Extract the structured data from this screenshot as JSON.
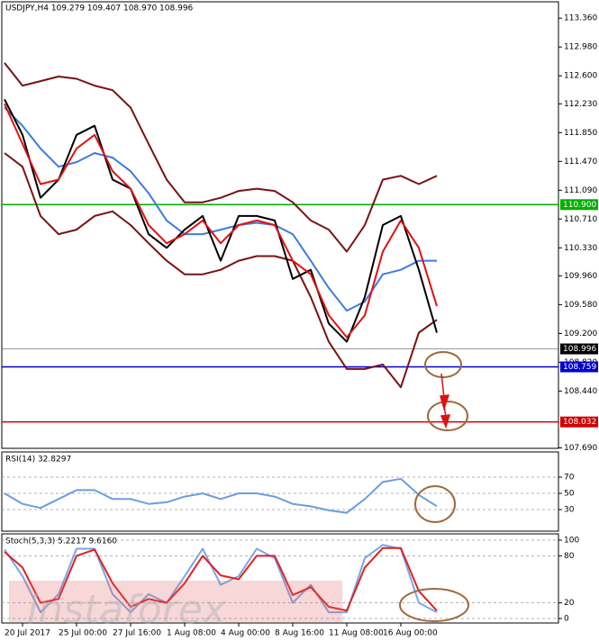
{
  "chart_data": [
    {
      "type": "line",
      "title": "USDJPY,H4  109.279 109.407 108.970 108.996",
      "categories": [
        null,
        "20 Jul 2017",
        null,
        null,
        "25 Jul 00:00",
        null,
        null,
        "27 Jul 16:00",
        null,
        null,
        "1 Aug 08:00",
        null,
        null,
        "4 Aug 00:00",
        null,
        null,
        "8 Aug 16:00",
        null,
        null,
        "11 Aug 08:00",
        null,
        null,
        "16 Aug 00:00",
        null,
        null
      ],
      "series": [
        {
          "color": "#7a1212",
          "values": [
            112.77,
            112.47,
            112.53,
            112.59,
            112.56,
            112.47,
            112.41,
            112.18,
            111.7,
            111.23,
            110.93,
            110.93,
            110.99,
            111.08,
            111.11,
            111.08,
            110.93,
            110.69,
            110.57,
            110.28,
            110.63,
            111.23,
            111.28,
            111.17,
            111.28
          ]
        },
        {
          "color": "#7a1212",
          "values": [
            111.58,
            111.4,
            110.75,
            110.51,
            110.57,
            110.75,
            110.81,
            110.63,
            110.39,
            110.16,
            109.98,
            109.98,
            110.04,
            110.16,
            110.22,
            110.22,
            110.16,
            109.68,
            109.09,
            108.73,
            108.73,
            108.79,
            108.49,
            109.21,
            109.38
          ]
        },
        {
          "color": "#3d7be0",
          "values": [
            112.18,
            111.94,
            111.64,
            111.4,
            111.46,
            111.58,
            111.52,
            111.34,
            111.05,
            110.69,
            110.51,
            110.51,
            110.57,
            110.63,
            110.66,
            110.63,
            110.51,
            110.16,
            109.8,
            109.5,
            109.62,
            109.98,
            110.04,
            110.16,
            110.16
          ]
        },
        {
          "color": "#000000",
          "values": [
            112.29,
            111.82,
            110.99,
            111.23,
            111.82,
            111.94,
            111.23,
            111.11,
            110.51,
            110.33,
            110.57,
            110.75,
            110.16,
            110.75,
            110.75,
            110.69,
            109.92,
            110.04,
            109.33,
            109.09,
            109.68,
            110.63,
            110.75,
            110.04,
            109.21
          ]
        },
        {
          "color": "#e01010",
          "values": [
            112.23,
            111.7,
            111.17,
            111.23,
            111.64,
            111.82,
            111.34,
            111.11,
            110.63,
            110.39,
            110.51,
            110.69,
            110.39,
            110.63,
            110.69,
            110.63,
            110.16,
            109.98,
            109.44,
            109.15,
            109.44,
            110.28,
            110.69,
            110.33,
            109.56
          ]
        }
      ],
      "ylim": [
        107.66,
        113.6
      ],
      "yticks": [
        {
          "value": 113.36,
          "label": "113.360"
        },
        {
          "value": 112.98,
          "label": "112.980"
        },
        {
          "value": 112.6,
          "label": "112.600"
        },
        {
          "value": 112.23,
          "label": "112.230"
        },
        {
          "value": 111.85,
          "label": "111.850"
        },
        {
          "value": 111.47,
          "label": "111.470"
        },
        {
          "value": 111.09,
          "label": "111.090"
        },
        {
          "value": 110.71,
          "label": "110.710"
        },
        {
          "value": 110.33,
          "label": "110.330"
        },
        {
          "value": 109.96,
          "label": "109.960"
        },
        {
          "value": 109.58,
          "label": "109.580"
        },
        {
          "value": 109.2,
          "label": "109.200"
        },
        {
          "value": 108.82,
          "label": "108.820"
        },
        {
          "value": 108.44,
          "label": "108.440"
        },
        {
          "value": 107.69,
          "label": "107.690"
        }
      ],
      "levels": [
        {
          "value": 110.9,
          "label": "110.900",
          "color": "#00b000"
        },
        {
          "value": 108.996,
          "label": "108.996",
          "color": "#000000"
        },
        {
          "value": 108.759,
          "label": "108.759",
          "color": "#0000d0"
        },
        {
          "value": 108.032,
          "label": "108.032",
          "color": "#d00000"
        }
      ]
    },
    {
      "type": "line",
      "title": "RSI(14) 32.8297",
      "series": [
        {
          "color": "#6a9de6",
          "values": [
            50,
            37,
            32,
            43,
            54,
            54,
            43,
            43,
            37,
            39,
            46,
            50,
            43,
            50,
            50,
            46,
            37,
            34,
            29,
            26,
            43,
            64,
            68,
            48,
            34
          ]
        }
      ],
      "ylim": [
        3.3,
        100
      ],
      "yticks": [
        30,
        50,
        70
      ],
      "grid": true
    },
    {
      "type": "line",
      "title": "Stoch(5,3,3) 5.2217 9.6160",
      "series": [
        {
          "color": "#7aa6e6",
          "values": [
            88,
            54,
            8,
            31,
            89,
            89,
            31,
            8,
            31,
            20,
            54,
            89,
            43,
            54,
            89,
            77,
            20,
            43,
            8,
            8,
            77,
            94,
            89,
            20,
            8
          ]
        },
        {
          "color": "#e02020",
          "values": [
            85,
            65,
            20,
            25,
            80,
            88,
            45,
            15,
            25,
            20,
            45,
            80,
            55,
            50,
            80,
            80,
            30,
            40,
            15,
            10,
            65,
            90,
            90,
            35,
            10
          ]
        }
      ],
      "ylim": [
        -5.7,
        108
      ],
      "yticks": [
        0,
        20,
        80,
        100
      ],
      "grid": true
    }
  ],
  "watermark": "instaforex"
}
